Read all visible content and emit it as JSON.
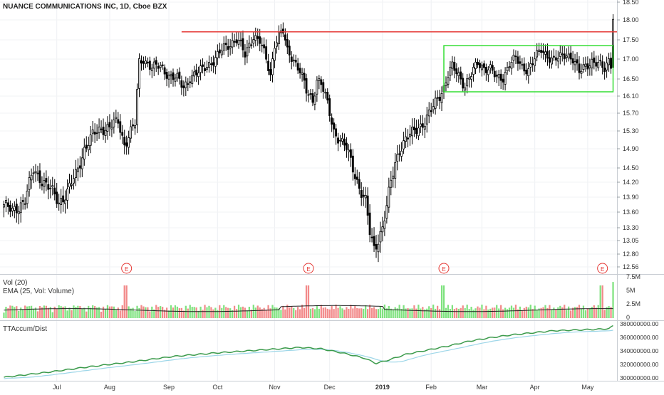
{
  "header": {
    "title": "NUANCE COMMUNICATIONS INC, 1D, Cboe BZX"
  },
  "volume_panel": {
    "title": "Vol (20)",
    "ema_title": "EMA (25, Vol: Volume)"
  },
  "accum_panel": {
    "title": "TTAccum/Dist"
  },
  "earnings_marker": "E",
  "colors": {
    "up": "#7fe27f",
    "down": "#f28a8a",
    "candle": "#000000",
    "resistance": "#e53935",
    "range_box": "#33dd33",
    "ema": "#222222",
    "accum": "#3a9a4a",
    "accum_avg": "#9dd6e8"
  },
  "chart_data": {
    "type": "candlestick",
    "title": "NUANCE COMMUNICATIONS INC, 1D, Cboe BZX",
    "x_tick_labels": [
      "Jul",
      "Aug",
      "Sep",
      "Oct",
      "Nov",
      "Dec",
      "2019",
      "Feb",
      "Mar",
      "Apr",
      "May"
    ],
    "price_axis": {
      "ticks": [
        18.5,
        18.0,
        17.5,
        17.0,
        16.5,
        16.1,
        15.7,
        15.3,
        14.9,
        14.5,
        14.2,
        13.9,
        13.6,
        13.3,
        13.05,
        12.8,
        12.56
      ],
      "tick_labels": [
        "18.50",
        "18.00",
        "17.50",
        "17.00",
        "16.50",
        "16.10",
        "15.70",
        "15.30",
        "14.90",
        "14.50",
        "14.20",
        "13.90",
        "13.60",
        "13.30",
        "13.05",
        "12.80",
        "12.56"
      ]
    },
    "volume_axis": {
      "ticks": [
        7500000,
        5000000,
        2500000,
        0
      ],
      "tick_labels": [
        "7.5M",
        "5M",
        "2.5M",
        "0"
      ]
    },
    "accum_axis": {
      "ticks": [
        380000000,
        360000000,
        340000000,
        320000000,
        300000000
      ],
      "tick_labels": [
        "380000000.00",
        "360000000.00",
        "340000000.00",
        "320000000.00",
        "300000000.00"
      ]
    },
    "price_anchors": [
      [
        0,
        13.75
      ],
      [
        4,
        13.6
      ],
      [
        10,
        13.85
      ],
      [
        14,
        14.45
      ],
      [
        18,
        14.25
      ],
      [
        22,
        14.05
      ],
      [
        26,
        13.8
      ],
      [
        30,
        14.0
      ],
      [
        34,
        14.35
      ],
      [
        38,
        14.9
      ],
      [
        42,
        15.2
      ],
      [
        46,
        15.35
      ],
      [
        50,
        15.4
      ],
      [
        54,
        15.5
      ],
      [
        57,
        15.0
      ],
      [
        60,
        15.3
      ],
      [
        62,
        15.45
      ],
      [
        64,
        16.9
      ],
      [
        66,
        17.0
      ],
      [
        68,
        16.9
      ],
      [
        70,
        16.8
      ],
      [
        74,
        16.8
      ],
      [
        78,
        16.6
      ],
      [
        82,
        16.5
      ],
      [
        85,
        16.3
      ],
      [
        88,
        16.55
      ],
      [
        92,
        16.65
      ],
      [
        96,
        16.85
      ],
      [
        100,
        17.0
      ],
      [
        104,
        17.3
      ],
      [
        108,
        17.45
      ],
      [
        110,
        17.5
      ],
      [
        112,
        17.35
      ],
      [
        114,
        17.1
      ],
      [
        116,
        17.4
      ],
      [
        118,
        17.6
      ],
      [
        121,
        17.45
      ],
      [
        124,
        17.0
      ],
      [
        126,
        16.6
      ],
      [
        128,
        17.4
      ],
      [
        130,
        17.6
      ],
      [
        132,
        17.7
      ],
      [
        134,
        17.2
      ],
      [
        137,
        17.0
      ],
      [
        140,
        16.7
      ],
      [
        143,
        16.2
      ],
      [
        146,
        16.0
      ],
      [
        148,
        16.5
      ],
      [
        150,
        16.4
      ],
      [
        153,
        15.9
      ],
      [
        156,
        15.3
      ],
      [
        159,
        15.1
      ],
      [
        162,
        14.9
      ],
      [
        165,
        14.5
      ],
      [
        168,
        14.1
      ],
      [
        171,
        13.8
      ],
      [
        173,
        13.2
      ],
      [
        175,
        12.9
      ],
      [
        177,
        13.1
      ],
      [
        179,
        13.3
      ],
      [
        181,
        13.7
      ],
      [
        183,
        14.2
      ],
      [
        185,
        14.6
      ],
      [
        187,
        14.9
      ],
      [
        190,
        15.1
      ],
      [
        193,
        15.25
      ],
      [
        196,
        15.4
      ],
      [
        199,
        15.5
      ],
      [
        202,
        15.75
      ],
      [
        205,
        16.05
      ],
      [
        208,
        16.3
      ],
      [
        210,
        16.6
      ],
      [
        212,
        16.8
      ],
      [
        215,
        16.6
      ],
      [
        218,
        16.35
      ],
      [
        221,
        16.6
      ],
      [
        224,
        16.9
      ],
      [
        227,
        16.8
      ],
      [
        230,
        16.75
      ],
      [
        233,
        16.5
      ],
      [
        236,
        16.55
      ],
      [
        239,
        16.9
      ],
      [
        242,
        17.0
      ],
      [
        245,
        16.8
      ],
      [
        248,
        16.75
      ],
      [
        251,
        17.0
      ],
      [
        254,
        17.25
      ],
      [
        257,
        17.1
      ],
      [
        260,
        16.95
      ],
      [
        263,
        17.05
      ],
      [
        266,
        17.15
      ],
      [
        269,
        17.0
      ],
      [
        272,
        16.65
      ],
      [
        275,
        16.85
      ],
      [
        278,
        16.95
      ],
      [
        281,
        16.85
      ],
      [
        284,
        16.75
      ],
      [
        286,
        17.0
      ],
      [
        287,
        16.9
      ],
      [
        288,
        18.1
      ]
    ],
    "resistance_level": 17.7,
    "consolidation_range": {
      "top": 17.35,
      "bottom": 16.2,
      "start_bar": 208,
      "end_bar": 288
    },
    "earnings_bars": [
      58,
      144,
      208,
      283
    ],
    "month_bars": [
      25,
      50,
      78,
      101,
      128,
      154,
      179,
      202,
      226,
      251,
      276
    ],
    "volume_average_millions": 1.5,
    "accum_anchors": [
      [
        0,
        303
      ],
      [
        20,
        310
      ],
      [
        40,
        318
      ],
      [
        60,
        325
      ],
      [
        80,
        333
      ],
      [
        100,
        338
      ],
      [
        120,
        342
      ],
      [
        140,
        346
      ],
      [
        150,
        344
      ],
      [
        160,
        338
      ],
      [
        170,
        331
      ],
      [
        176,
        323
      ],
      [
        182,
        328
      ],
      [
        190,
        336
      ],
      [
        200,
        342
      ],
      [
        210,
        348
      ],
      [
        220,
        355
      ],
      [
        230,
        360
      ],
      [
        240,
        364
      ],
      [
        250,
        367
      ],
      [
        260,
        370
      ],
      [
        270,
        371
      ],
      [
        280,
        372
      ],
      [
        286,
        373
      ],
      [
        288,
        377
      ]
    ]
  }
}
